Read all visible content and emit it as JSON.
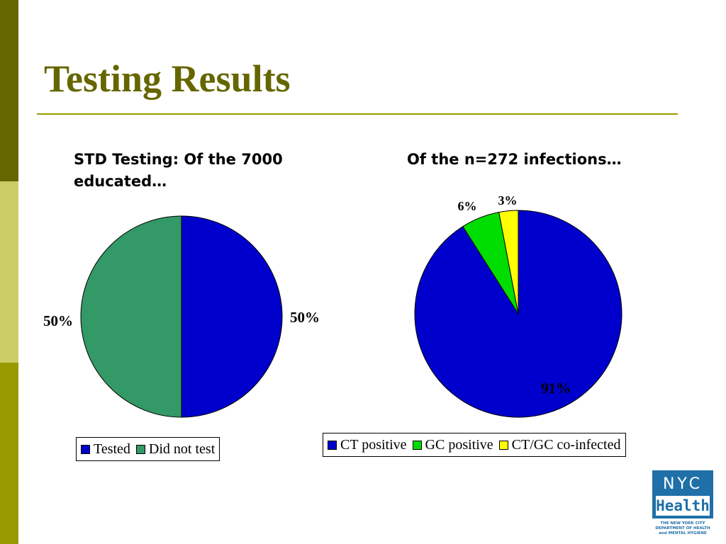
{
  "slide": {
    "title": "Testing Results"
  },
  "colors": {
    "tested": "#0000cc",
    "did_not_test": "#339966",
    "ct_positive": "#0000cc",
    "gc_positive": "#00dd00",
    "ct_gc_coinfected": "#ffff00",
    "title": "#666600"
  },
  "logo": {
    "line1": "NYC",
    "line2": "Health",
    "subtitle": "THE NEW YORK CITY DEPARTMENT OF HEALTH and MENTAL HYGIENE"
  },
  "chart_data": [
    {
      "type": "pie",
      "title": "STD Testing: Of the 7000 educated…",
      "categories": [
        "Tested",
        "Did not test"
      ],
      "values": [
        50,
        50
      ],
      "labels": [
        "50%",
        "50%"
      ],
      "colors": [
        "#0000cc",
        "#339966"
      ],
      "legend_position": "bottom"
    },
    {
      "type": "pie",
      "title": "Of the n=272 infections…",
      "categories": [
        "CT positive",
        "GC positive",
        "CT/GC co-infected"
      ],
      "values": [
        91,
        6,
        3
      ],
      "labels": [
        "91%",
        "6%",
        "3%"
      ],
      "colors": [
        "#0000cc",
        "#00dd00",
        "#ffff00"
      ],
      "legend_position": "bottom"
    }
  ]
}
